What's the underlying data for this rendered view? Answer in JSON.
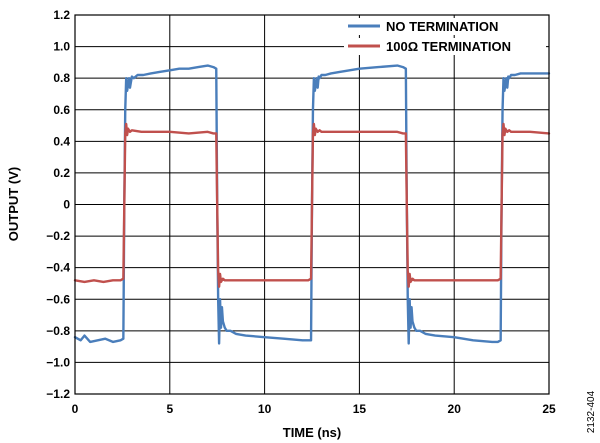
{
  "chart_data": {
    "type": "line",
    "title": "",
    "xlabel": "TIME (ns)",
    "ylabel": "OUTPUT (V)",
    "xlim": [
      0,
      25
    ],
    "ylim": [
      -1.2,
      1.2
    ],
    "xticks": [
      0,
      5,
      10,
      15,
      20,
      25
    ],
    "yticks": [
      -1.2,
      -1.0,
      -0.8,
      -0.6,
      -0.4,
      -0.2,
      0,
      0.2,
      0.4,
      0.6,
      0.8,
      1.0,
      1.2
    ],
    "xtick_labels": [
      "0",
      "5",
      "10",
      "15",
      "20",
      "25"
    ],
    "ytick_labels": [
      "−1.2",
      "−1.0",
      "−0.8",
      "−0.6",
      "−0.4",
      "−0.2",
      "0",
      "0.2",
      "0.4",
      "0.6",
      "0.8",
      "1.0",
      "1.2"
    ],
    "grid": true,
    "legend_position": "top-right",
    "figure_code": "2132-404",
    "series": [
      {
        "name": "NO TERMINATION",
        "color": "#4a7ebb",
        "x": [
          0,
          0.3,
          0.5,
          0.8,
          1.2,
          1.6,
          2.0,
          2.4,
          2.55,
          2.6,
          2.65,
          2.7,
          2.75,
          2.8,
          2.85,
          2.9,
          3.0,
          3.1,
          3.3,
          3.6,
          4.0,
          4.5,
          5.0,
          5.5,
          6.0,
          6.5,
          7.0,
          7.3,
          7.45,
          7.5,
          7.55,
          7.6,
          7.65,
          7.7,
          7.75,
          7.8,
          7.9,
          8.0,
          8.2,
          8.5,
          9.0,
          10.0,
          11.0,
          12.0,
          12.3,
          12.45,
          12.5,
          12.55,
          12.6,
          12.65,
          12.7,
          12.75,
          12.8,
          12.85,
          12.9,
          13.0,
          13.2,
          13.5,
          14.0,
          15.0,
          16.0,
          17.0,
          17.3,
          17.45,
          17.5,
          17.55,
          17.6,
          17.65,
          17.7,
          17.75,
          17.8,
          17.9,
          18.0,
          18.2,
          18.5,
          19.0,
          20.0,
          21.0,
          22.0,
          22.3,
          22.45,
          22.5,
          22.55,
          22.6,
          22.65,
          22.7,
          22.75,
          22.8,
          22.85,
          22.9,
          23.0,
          23.2,
          23.5,
          24.0,
          24.5,
          25.0
        ],
        "y": [
          -0.84,
          -0.86,
          -0.83,
          -0.87,
          -0.86,
          -0.85,
          -0.87,
          -0.86,
          -0.85,
          0.0,
          0.6,
          0.8,
          0.72,
          0.76,
          0.8,
          0.74,
          0.81,
          0.8,
          0.82,
          0.82,
          0.83,
          0.84,
          0.85,
          0.86,
          0.86,
          0.87,
          0.88,
          0.87,
          0.86,
          0.0,
          -0.6,
          -0.88,
          -0.6,
          -0.78,
          -0.65,
          -0.74,
          -0.78,
          -0.8,
          -0.8,
          -0.82,
          -0.83,
          -0.84,
          -0.85,
          -0.86,
          -0.86,
          -0.86,
          0.0,
          0.6,
          0.8,
          0.72,
          0.76,
          0.8,
          0.74,
          0.81,
          0.8,
          0.82,
          0.82,
          0.83,
          0.84,
          0.86,
          0.87,
          0.88,
          0.87,
          0.86,
          0.0,
          -0.6,
          -0.88,
          -0.6,
          -0.78,
          -0.65,
          -0.74,
          -0.78,
          -0.8,
          -0.8,
          -0.82,
          -0.83,
          -0.84,
          -0.86,
          -0.87,
          -0.87,
          -0.86,
          0.0,
          0.6,
          0.8,
          0.72,
          0.76,
          0.8,
          0.74,
          0.81,
          0.8,
          0.82,
          0.82,
          0.83,
          0.83,
          0.83,
          0.83
        ]
      },
      {
        "name": "100Ω TERMINATION",
        "color": "#c0504d",
        "x": [
          0,
          0.5,
          1.0,
          1.5,
          2.0,
          2.4,
          2.55,
          2.6,
          2.65,
          2.7,
          2.75,
          2.8,
          2.9,
          3.0,
          3.5,
          4.0,
          5.0,
          6.0,
          7.0,
          7.3,
          7.45,
          7.5,
          7.55,
          7.6,
          7.65,
          7.7,
          7.8,
          7.9,
          8.0,
          9.0,
          10.0,
          11.0,
          12.0,
          12.3,
          12.45,
          12.5,
          12.55,
          12.6,
          12.65,
          12.7,
          12.8,
          12.9,
          13.0,
          14.0,
          15.0,
          16.0,
          17.0,
          17.3,
          17.45,
          17.5,
          17.55,
          17.6,
          17.65,
          17.7,
          17.8,
          17.9,
          18.0,
          19.0,
          20.0,
          21.0,
          22.0,
          22.3,
          22.45,
          22.5,
          22.55,
          22.6,
          22.65,
          22.7,
          22.8,
          22.9,
          23.0,
          24.0,
          25.0
        ],
        "y": [
          -0.48,
          -0.49,
          -0.48,
          -0.49,
          -0.48,
          -0.48,
          -0.47,
          0.0,
          0.45,
          0.51,
          0.44,
          0.48,
          0.46,
          0.47,
          0.46,
          0.46,
          0.46,
          0.45,
          0.46,
          0.45,
          0.45,
          0.0,
          -0.42,
          -0.52,
          -0.44,
          -0.49,
          -0.47,
          -0.48,
          -0.48,
          -0.48,
          -0.48,
          -0.48,
          -0.48,
          -0.48,
          -0.47,
          0.0,
          0.45,
          0.51,
          0.44,
          0.48,
          0.46,
          0.47,
          0.46,
          0.46,
          0.46,
          0.46,
          0.46,
          0.45,
          0.45,
          0.0,
          -0.42,
          -0.52,
          -0.44,
          -0.49,
          -0.47,
          -0.48,
          -0.48,
          -0.48,
          -0.48,
          -0.48,
          -0.48,
          -0.48,
          -0.47,
          0.0,
          0.45,
          0.51,
          0.44,
          0.48,
          0.46,
          0.47,
          0.46,
          0.46,
          0.45
        ]
      }
    ]
  }
}
